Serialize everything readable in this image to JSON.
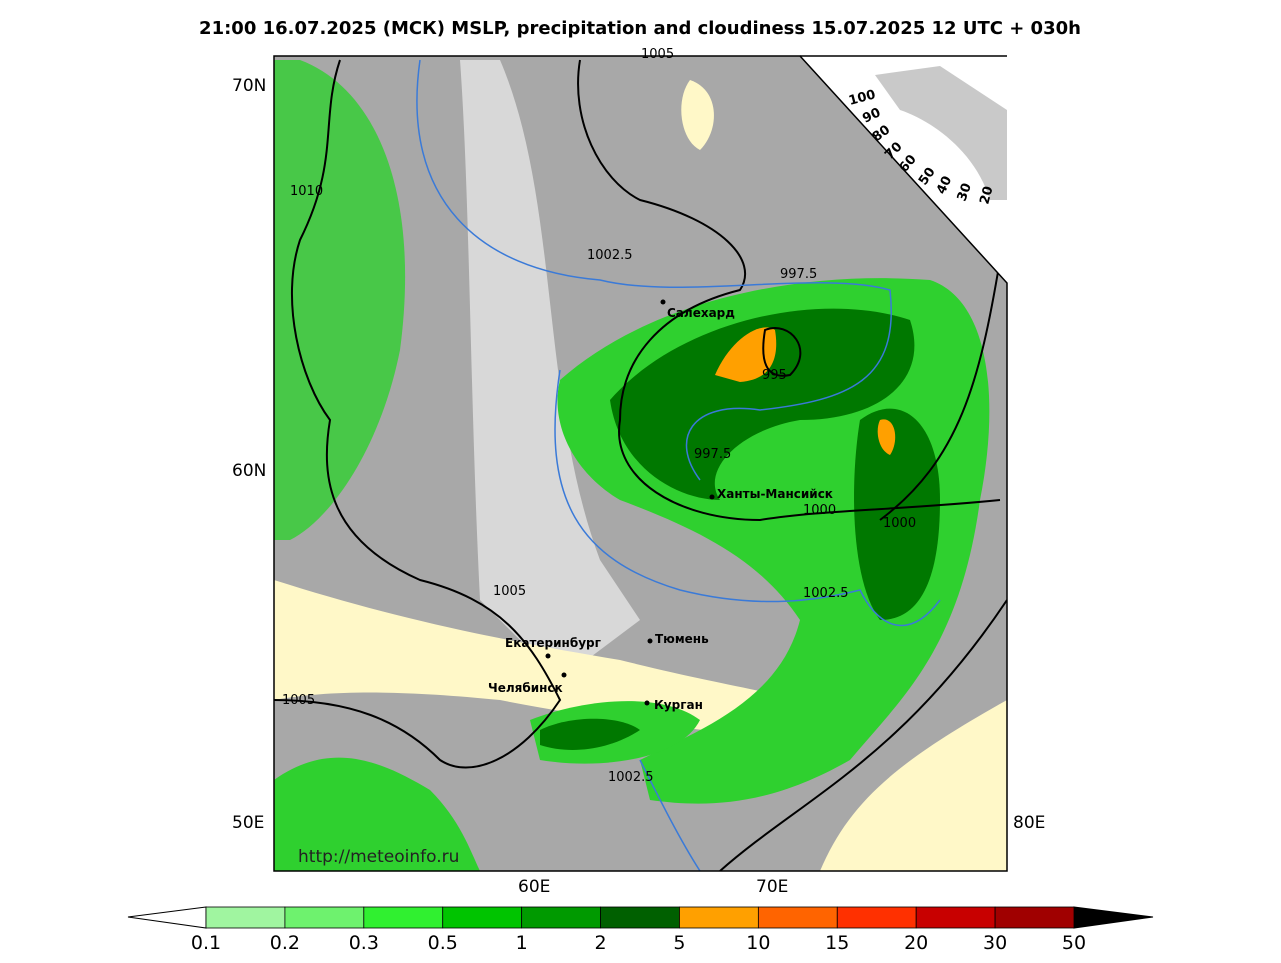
{
  "header": {
    "title": "21:00 16.07.2025 (МСК) MSLP, precipitation and cloudiness 15.07.2025 12 UTC + 030h"
  },
  "axes": {
    "lat": [
      "70N",
      "60N"
    ],
    "lon": [
      "50E",
      "60E",
      "70E",
      "80E"
    ]
  },
  "isobars": [
    1005,
    1010,
    1002.5,
    997.5,
    995,
    997.5,
    1000,
    1000,
    1005,
    1002.5,
    1005,
    1002.5
  ],
  "cities": [
    "Салехард",
    "Ханты-Мансийск",
    "Тюмень",
    "Екатеринбург",
    "Челябинск",
    "Курган"
  ],
  "cloud_scale": [
    100,
    90,
    80,
    70,
    60,
    50,
    40,
    30,
    20
  ],
  "source": "http://meteoinfo.ru",
  "colorbar": {
    "ticks": [
      0.1,
      0.2,
      0.3,
      0.5,
      1,
      2,
      5,
      10,
      15,
      20,
      30,
      50
    ]
  }
}
